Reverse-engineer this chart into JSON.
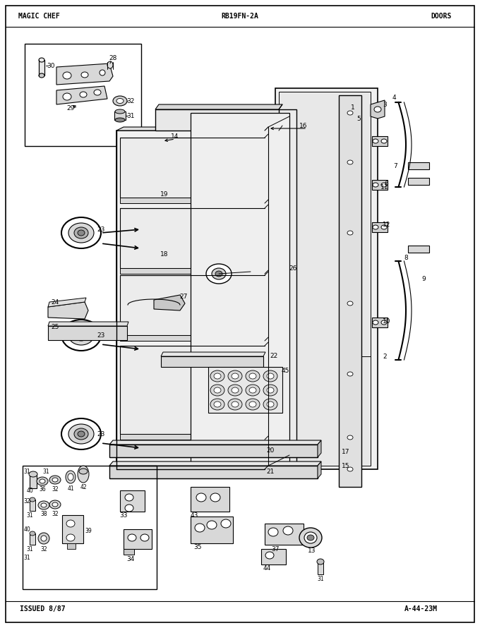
{
  "title_left": "MAGIC CHEF",
  "title_center": "RB19FN-2A",
  "title_right": "DOORS",
  "footer_left": "ISSUED 8/87",
  "footer_right": "A-44-23M",
  "bg_color": "#ffffff",
  "line_color": "#000000",
  "text_color": "#000000"
}
